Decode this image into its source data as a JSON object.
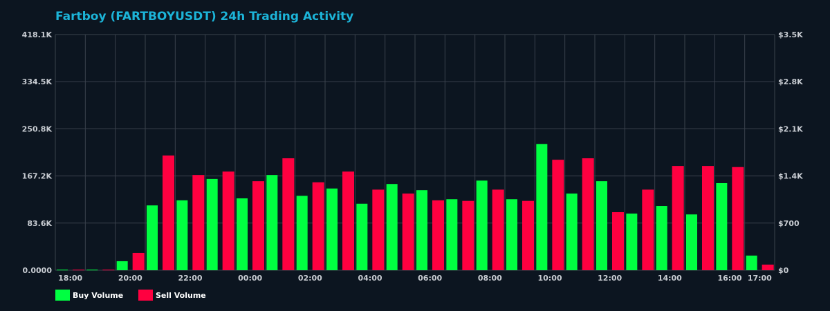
{
  "chart_data": {
    "type": "bar",
    "title": "Fartboy (FARTBOYUSDT) 24h Trading Activity",
    "categories": [
      "18:00",
      "19:00",
      "20:00",
      "21:00",
      "22:00",
      "23:00",
      "00:00",
      "01:00",
      "02:00",
      "03:00",
      "04:00",
      "05:00",
      "06:00",
      "07:00",
      "08:00",
      "09:00",
      "10:00",
      "11:00",
      "12:00",
      "13:00",
      "14:00",
      "15:00",
      "16:00",
      "17:00"
    ],
    "x_tick_labels": [
      "18:00",
      "20:00",
      "22:00",
      "00:00",
      "02:00",
      "04:00",
      "06:00",
      "08:00",
      "10:00",
      "12:00",
      "14:00",
      "16:00",
      "17:00"
    ],
    "series": [
      {
        "name": "Buy Volume",
        "color": "#00ff41",
        "values": [
          1000,
          1000,
          16000,
          115000,
          124000,
          162000,
          127500,
          169000,
          132000,
          145000,
          118000,
          153000,
          142000,
          126000,
          159000,
          126000,
          224000,
          136000,
          158000,
          100500,
          114000,
          99000,
          154500,
          26000
        ]
      },
      {
        "name": "Sell Volume",
        "color": "#ff0040",
        "values": [
          1000,
          1000,
          30700,
          203500,
          169000,
          175000,
          158000,
          198600,
          156000,
          175000,
          143000,
          136000,
          124000,
          123000,
          143000,
          123000,
          196000,
          198600,
          103000,
          143000,
          185000,
          185000,
          183000,
          10000
        ]
      }
    ],
    "ylim": [
      0,
      418100
    ],
    "y_tick_labels": [
      "0.0000",
      "83.6K",
      "167.2K",
      "250.8K",
      "334.5K",
      "418.1K"
    ],
    "y2lim": [
      0,
      3500
    ],
    "y2_tick_labels": [
      "$0",
      "$700",
      "$1.4K",
      "$2.1K",
      "$2.8K",
      "$3.5K"
    ],
    "grid": true,
    "legend": "bottom-left"
  }
}
